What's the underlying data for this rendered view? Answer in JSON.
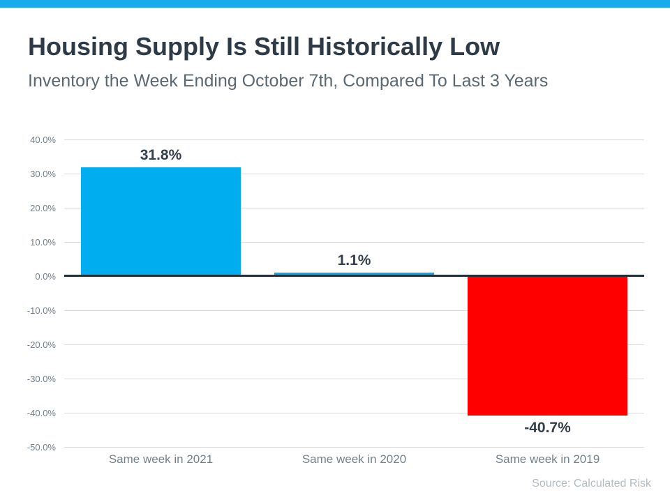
{
  "page": {
    "title": "Housing Supply Is Still Historically Low",
    "subtitle": "Inventory the Week Ending October 7th, Compared To Last 3 Years",
    "source": "Source: Calculated Risk"
  },
  "colors": {
    "accent_stripe": "#15abec",
    "bar_positive": "#00aeef",
    "bar_negative": "#ff0000",
    "title_text": "#2e3b47",
    "subtitle_text": "#5a6872",
    "axis_tick_text": "#707c87",
    "category_text": "#73808a",
    "value_label_text": "#333f4b",
    "source_text": "#b1bac1",
    "gridline": "#d8dbdd",
    "zero_line": "#232f38"
  },
  "chart_data": {
    "type": "bar",
    "title": "Housing Supply Is Still Historically Low",
    "subtitle": "Inventory the Week Ending October 7th, Compared To Last 3 Years",
    "categories": [
      "Same week in 2021",
      "Same week in 2020",
      "Same week in 2019"
    ],
    "values": [
      31.8,
      1.1,
      -40.7
    ],
    "value_labels": [
      "31.8%",
      "1.1%",
      "-40.7%"
    ],
    "xlabel": "",
    "ylabel": "",
    "ylim": [
      -50,
      40
    ],
    "ytick_step": 10,
    "ytick_labels": [
      "40.0%",
      "30.0%",
      "20.0%",
      "10.0%",
      "0.0%",
      "-10.0%",
      "-20.0%",
      "-30.0%",
      "-40.0%",
      "-50.0%"
    ],
    "grid": true,
    "legend": false,
    "annotation": "Source: Calculated Risk"
  }
}
